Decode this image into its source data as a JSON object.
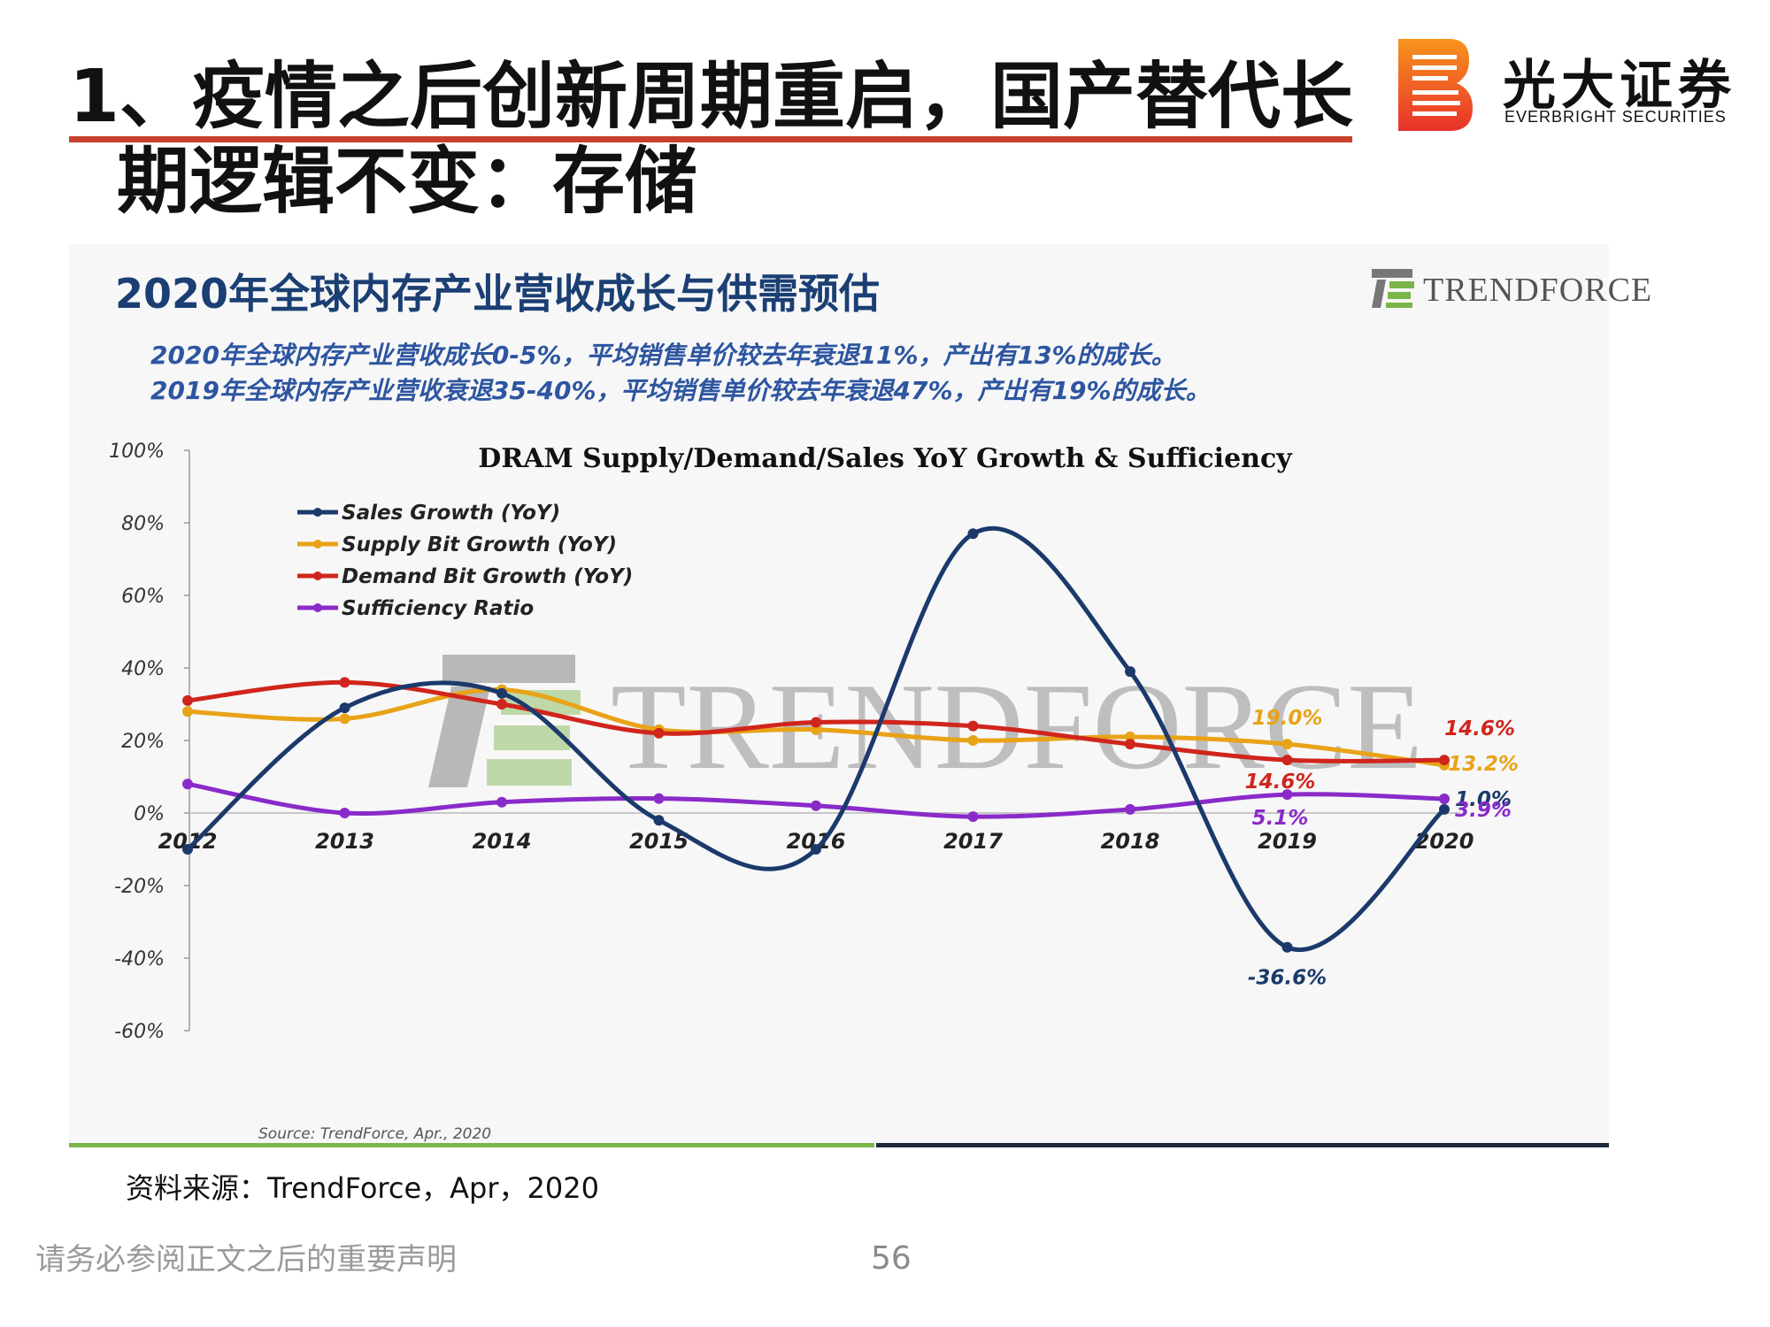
{
  "slide": {
    "title_line1": "1、疫情之后创新周期重启，国产替代长",
    "title_line2": "期逻辑不变：存储",
    "source_note": "资料来源：TrendForce，Apr，2020",
    "disclaimer": "请务必参阅正文之后的重要声明",
    "page_number": "56"
  },
  "logo": {
    "cn": "光大证券",
    "en": "EVERBRIGHT SECURITIES",
    "colors": {
      "red": "#e8322a",
      "orange": "#f7941d"
    }
  },
  "figure": {
    "title": "2020年全球内存产业营收成长与供需预估",
    "brand": "TRENDFORCE",
    "notes": [
      "2020年全球内存产业营收成长0-5%，平均销售单价较去年衰退11%，产出有13%的成长。",
      "2019年全球内存产业营收衰退35-40%，平均销售单价较去年衰退47%，产出有19%的成长。"
    ],
    "source": "Source: TrendForce, Apr., 2020"
  },
  "chart_data": {
    "type": "line",
    "title": "DRAM Supply/Demand/Sales YoY Growth & Sufficiency",
    "xlabel": "",
    "ylabel": "",
    "x": [
      "2012",
      "2013",
      "2014",
      "2015",
      "2016",
      "2017",
      "2018",
      "2019",
      "2020"
    ],
    "ylim": [
      -60,
      100
    ],
    "yticks": [
      "100%",
      "80%",
      "60%",
      "40%",
      "20%",
      "0%",
      "-20%",
      "-40%",
      "-60%"
    ],
    "yvalues": [
      100,
      80,
      60,
      40,
      20,
      0,
      -20,
      -40,
      -60
    ],
    "legend_position": "top-left",
    "grid": false,
    "watermark": "TRENDFORCE",
    "series": [
      {
        "name": "Sales Growth (YoY)",
        "color": "#1b3a6b",
        "values": [
          -10,
          29,
          33,
          -2,
          -10,
          77,
          39,
          -37,
          1.0
        ]
      },
      {
        "name": "Supply Bit Growth (YoY)",
        "color": "#e8a317",
        "values": [
          28,
          26,
          34,
          23,
          23,
          20,
          21,
          19.0,
          13.2
        ]
      },
      {
        "name": "Demand Bit Growth (YoY)",
        "color": "#d0251d",
        "values": [
          31,
          36,
          30,
          22,
          25,
          24,
          19,
          14.6,
          14.6
        ]
      },
      {
        "name": "Sufficiency Ratio",
        "color": "#8a2bc9",
        "values": [
          8,
          0,
          3,
          4,
          2,
          -1,
          1,
          5.1,
          3.9
        ]
      }
    ],
    "data_labels": [
      {
        "series": 1,
        "point": 7,
        "text": "19.0%",
        "color": "#e8a317"
      },
      {
        "series": 2,
        "point": 7,
        "text": "14.6%",
        "color": "#d0251d"
      },
      {
        "series": 3,
        "point": 7,
        "text": "5.1%",
        "color": "#8a2bc9"
      },
      {
        "series": 0,
        "point": 7,
        "text": "-36.6%",
        "color": "#1b3a6b"
      },
      {
        "series": 2,
        "point": 8,
        "text": "14.6%",
        "color": "#d0251d"
      },
      {
        "series": 1,
        "point": 8,
        "text": "13.2%",
        "color": "#e8a317"
      },
      {
        "series": 0,
        "point": 8,
        "text": "1.0%",
        "color": "#1b3a6b"
      },
      {
        "series": 3,
        "point": 8,
        "text": "3.9%",
        "color": "#8a2bc9"
      }
    ]
  }
}
